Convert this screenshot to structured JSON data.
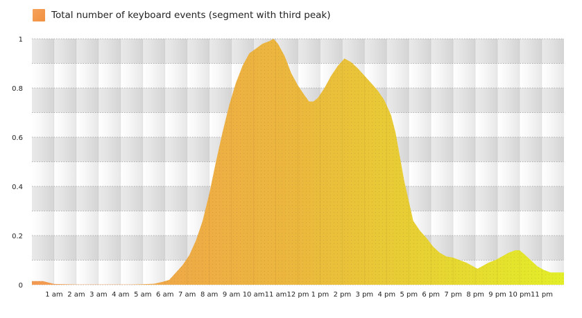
{
  "chart_data": {
    "type": "area",
    "legend": {
      "label": "Total number of keyboard events (segment with third peak)",
      "position": "top-left"
    },
    "x_ticks": [
      "1 am",
      "2 am",
      "3 am",
      "4 am",
      "5 am",
      "6 am",
      "7 am",
      "8 am",
      "9 am",
      "10 am",
      "11 am",
      "12 pm",
      "1 pm",
      "2 pm",
      "3 pm",
      "4 pm",
      "5 pm",
      "6 pm",
      "7 pm",
      "8 pm",
      "9 pm",
      "10 pm",
      "11 pm"
    ],
    "y_ticks": [
      "0",
      "0.2",
      "0.4",
      "0.6",
      "0.8",
      "1"
    ],
    "ylim": [
      0,
      1
    ],
    "grid": true,
    "colors": {
      "start": "#f39a52",
      "mid": "#ebb83d",
      "end": "#e3ee28"
    },
    "series": [
      {
        "name": "Total number of keyboard events (segment with third peak)",
        "x_hours": [
          0.5,
          1,
          1.5,
          2,
          2.5,
          3,
          3.5,
          4,
          4.5,
          5,
          5.5,
          5.9,
          6.2,
          6.5,
          6.8,
          7.1,
          7.4,
          7.7,
          8.0,
          8.3,
          8.6,
          8.9,
          9.2,
          9.5,
          9.8,
          10.1,
          10.4,
          10.7,
          10.9,
          11.1,
          11.4,
          11.7,
          12.0,
          12.3,
          12.5,
          12.7,
          12.9,
          13.2,
          13.5,
          13.8,
          14.1,
          14.4,
          14.7,
          15.0,
          15.3,
          15.6,
          15.9,
          16.2,
          16.4,
          16.6,
          16.8,
          17.0,
          17.2,
          17.5,
          17.8,
          18.1,
          18.4,
          18.7,
          19.0,
          19.3,
          19.6,
          19.9,
          20.1,
          20.3,
          20.6,
          20.9,
          21.2,
          21.5,
          21.8,
          22.0,
          22.2,
          22.5,
          22.8,
          23.1,
          23.4
        ],
        "values": [
          0.015,
          0.003,
          0.002,
          0.001,
          0.001,
          0.001,
          0.001,
          0.001,
          0.001,
          0.002,
          0.004,
          0.012,
          0.02,
          0.05,
          0.08,
          0.12,
          0.18,
          0.26,
          0.37,
          0.5,
          0.62,
          0.73,
          0.82,
          0.89,
          0.94,
          0.96,
          0.98,
          0.99,
          1.0,
          0.98,
          0.93,
          0.86,
          0.81,
          0.77,
          0.745,
          0.745,
          0.76,
          0.8,
          0.85,
          0.89,
          0.92,
          0.905,
          0.88,
          0.85,
          0.82,
          0.79,
          0.75,
          0.69,
          0.62,
          0.52,
          0.42,
          0.34,
          0.26,
          0.22,
          0.19,
          0.155,
          0.13,
          0.115,
          0.11,
          0.1,
          0.09,
          0.075,
          0.065,
          0.075,
          0.09,
          0.1,
          0.115,
          0.13,
          0.14,
          0.14,
          0.125,
          0.1,
          0.075,
          0.06,
          0.05
        ]
      }
    ]
  }
}
